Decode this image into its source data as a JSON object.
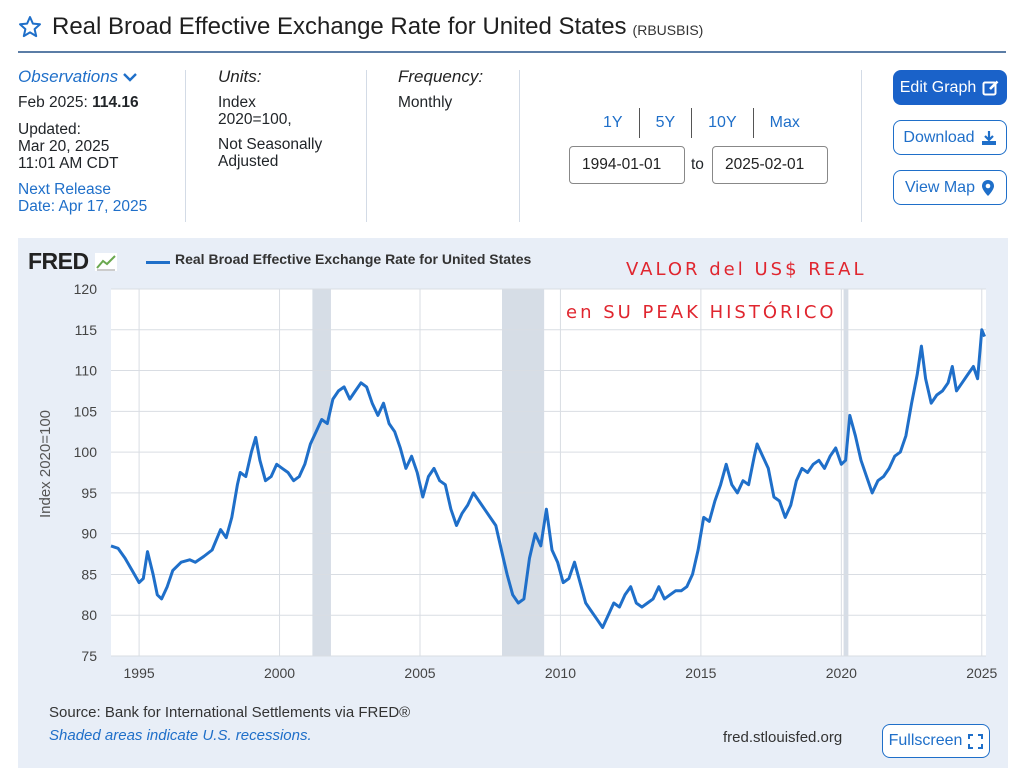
{
  "header": {
    "title": "Real Broad Effective Exchange Rate for United States",
    "series_id": "(RBUSBIS)"
  },
  "meta": {
    "observations_label": "Observations",
    "obs_date": "Feb 2025:",
    "obs_value": "114.16",
    "updated_label": "Updated:",
    "updated_date": "Mar 20, 2025",
    "updated_time": "11:01 AM CDT",
    "next_release_1": "Next Release",
    "next_release_2": "Date: Apr 17, 2025",
    "units_label": "Units:",
    "units_1": "Index",
    "units_2": "2020=100,",
    "units_3": "Not Seasonally",
    "units_4": "Adjusted",
    "frequency_label": "Frequency:",
    "frequency_value": "Monthly"
  },
  "range": {
    "links": [
      "1Y",
      "5Y",
      "10Y",
      "Max"
    ],
    "start": "1994-01-01",
    "to": "to",
    "end": "2025-02-01"
  },
  "buttons": {
    "edit": "Edit Graph",
    "download": "Download",
    "view_map": "View Map",
    "fullscreen": "Fullscreen"
  },
  "footer": {
    "source": "Source: Bank for International Settlements via FRED®",
    "shade_note": "Shaded areas indicate U.S. recessions.",
    "url": "fred.stlouisfed.org"
  },
  "logo": "FRED",
  "annotation": {
    "line1": "VALOR del US$ REAL",
    "line2": "en SU PEAK HISTÓRICO"
  },
  "colors": {
    "series": "#1f6fc9",
    "panel": "#e8eef7",
    "recession": "#d6dde6",
    "annotation": "#e0262f"
  },
  "chart_data": {
    "type": "line",
    "title": "",
    "legend": "Real Broad Effective Exchange Rate for United States",
    "ylabel": "Index 2020=100",
    "xlabel": "",
    "ylim": [
      75,
      120
    ],
    "xlim": [
      1994.0,
      2025.15
    ],
    "yticks": [
      75,
      80,
      85,
      90,
      95,
      100,
      105,
      110,
      115,
      120
    ],
    "xticks": [
      1995,
      2000,
      2005,
      2010,
      2015,
      2020,
      2025
    ],
    "grid": true,
    "recessions": [
      [
        2001.17,
        2001.83
      ],
      [
        2007.92,
        2009.42
      ],
      [
        2020.08,
        2020.25
      ]
    ],
    "series": [
      {
        "name": "Real Broad Effective Exchange Rate for United States",
        "points": [
          [
            1994.0,
            88.5
          ],
          [
            1994.25,
            88.2
          ],
          [
            1994.5,
            87.0
          ],
          [
            1994.75,
            85.5
          ],
          [
            1995.0,
            84.0
          ],
          [
            1995.15,
            84.5
          ],
          [
            1995.3,
            87.8
          ],
          [
            1995.5,
            85.0
          ],
          [
            1995.65,
            82.5
          ],
          [
            1995.8,
            82.0
          ],
          [
            1996.0,
            83.5
          ],
          [
            1996.2,
            85.5
          ],
          [
            1996.5,
            86.5
          ],
          [
            1996.8,
            86.8
          ],
          [
            1997.0,
            86.5
          ],
          [
            1997.3,
            87.2
          ],
          [
            1997.6,
            88.0
          ],
          [
            1997.9,
            90.5
          ],
          [
            1998.1,
            89.5
          ],
          [
            1998.3,
            92.0
          ],
          [
            1998.5,
            96.0
          ],
          [
            1998.6,
            97.5
          ],
          [
            1998.8,
            97.0
          ],
          [
            1999.0,
            100.0
          ],
          [
            1999.15,
            101.8
          ],
          [
            1999.3,
            99.0
          ],
          [
            1999.5,
            96.5
          ],
          [
            1999.7,
            97.0
          ],
          [
            1999.9,
            98.5
          ],
          [
            2000.1,
            98.0
          ],
          [
            2000.3,
            97.5
          ],
          [
            2000.5,
            96.5
          ],
          [
            2000.7,
            97.0
          ],
          [
            2000.9,
            98.5
          ],
          [
            2001.1,
            101.0
          ],
          [
            2001.3,
            102.5
          ],
          [
            2001.5,
            104.0
          ],
          [
            2001.7,
            103.5
          ],
          [
            2001.9,
            106.5
          ],
          [
            2002.1,
            107.5
          ],
          [
            2002.3,
            108.0
          ],
          [
            2002.5,
            106.5
          ],
          [
            2002.7,
            107.5
          ],
          [
            2002.9,
            108.5
          ],
          [
            2003.1,
            108.0
          ],
          [
            2003.3,
            106.0
          ],
          [
            2003.5,
            104.5
          ],
          [
            2003.7,
            106.0
          ],
          [
            2003.9,
            103.5
          ],
          [
            2004.1,
            102.5
          ],
          [
            2004.3,
            100.5
          ],
          [
            2004.5,
            98.0
          ],
          [
            2004.7,
            99.5
          ],
          [
            2004.9,
            97.5
          ],
          [
            2005.1,
            94.5
          ],
          [
            2005.3,
            97.0
          ],
          [
            2005.5,
            98.0
          ],
          [
            2005.7,
            96.5
          ],
          [
            2005.9,
            96.0
          ],
          [
            2006.1,
            93.0
          ],
          [
            2006.3,
            91.0
          ],
          [
            2006.5,
            92.5
          ],
          [
            2006.7,
            93.5
          ],
          [
            2006.9,
            95.0
          ],
          [
            2007.1,
            94.0
          ],
          [
            2007.3,
            93.0
          ],
          [
            2007.5,
            92.0
          ],
          [
            2007.7,
            91.0
          ],
          [
            2007.9,
            88.0
          ],
          [
            2008.1,
            85.0
          ],
          [
            2008.3,
            82.5
          ],
          [
            2008.5,
            81.5
          ],
          [
            2008.7,
            82.0
          ],
          [
            2008.9,
            87.0
          ],
          [
            2009.1,
            90.0
          ],
          [
            2009.3,
            88.5
          ],
          [
            2009.5,
            93.0
          ],
          [
            2009.7,
            88.0
          ],
          [
            2009.9,
            86.5
          ],
          [
            2010.1,
            84.0
          ],
          [
            2010.3,
            84.5
          ],
          [
            2010.5,
            86.5
          ],
          [
            2010.7,
            84.0
          ],
          [
            2010.9,
            81.5
          ],
          [
            2011.1,
            80.5
          ],
          [
            2011.3,
            79.5
          ],
          [
            2011.5,
            78.5
          ],
          [
            2011.7,
            80.0
          ],
          [
            2011.9,
            81.5
          ],
          [
            2012.1,
            81.0
          ],
          [
            2012.3,
            82.5
          ],
          [
            2012.5,
            83.5
          ],
          [
            2012.7,
            81.5
          ],
          [
            2012.9,
            81.0
          ],
          [
            2013.1,
            81.5
          ],
          [
            2013.3,
            82.0
          ],
          [
            2013.5,
            83.5
          ],
          [
            2013.7,
            82.0
          ],
          [
            2013.9,
            82.5
          ],
          [
            2014.1,
            83.0
          ],
          [
            2014.3,
            83.0
          ],
          [
            2014.5,
            83.5
          ],
          [
            2014.7,
            85.0
          ],
          [
            2014.9,
            88.0
          ],
          [
            2015.1,
            92.0
          ],
          [
            2015.3,
            91.5
          ],
          [
            2015.5,
            94.0
          ],
          [
            2015.7,
            96.0
          ],
          [
            2015.9,
            98.5
          ],
          [
            2016.1,
            96.0
          ],
          [
            2016.3,
            95.0
          ],
          [
            2016.5,
            96.5
          ],
          [
            2016.7,
            96.0
          ],
          [
            2016.9,
            99.5
          ],
          [
            2017.0,
            101.0
          ],
          [
            2017.2,
            99.5
          ],
          [
            2017.4,
            98.0
          ],
          [
            2017.6,
            94.5
          ],
          [
            2017.8,
            94.0
          ],
          [
            2018.0,
            92.0
          ],
          [
            2018.2,
            93.5
          ],
          [
            2018.4,
            96.5
          ],
          [
            2018.6,
            98.0
          ],
          [
            2018.8,
            97.5
          ],
          [
            2019.0,
            98.5
          ],
          [
            2019.2,
            99.0
          ],
          [
            2019.4,
            98.0
          ],
          [
            2019.6,
            99.5
          ],
          [
            2019.8,
            100.5
          ],
          [
            2020.0,
            98.5
          ],
          [
            2020.15,
            99.0
          ],
          [
            2020.3,
            104.5
          ],
          [
            2020.5,
            102.0
          ],
          [
            2020.7,
            99.0
          ],
          [
            2020.9,
            97.0
          ],
          [
            2021.1,
            95.0
          ],
          [
            2021.3,
            96.5
          ],
          [
            2021.5,
            97.0
          ],
          [
            2021.7,
            98.0
          ],
          [
            2021.9,
            99.5
          ],
          [
            2022.1,
            100.0
          ],
          [
            2022.3,
            102.0
          ],
          [
            2022.5,
            106.0
          ],
          [
            2022.7,
            109.5
          ],
          [
            2022.85,
            113.0
          ],
          [
            2023.0,
            109.0
          ],
          [
            2023.2,
            106.0
          ],
          [
            2023.4,
            107.0
          ],
          [
            2023.6,
            107.5
          ],
          [
            2023.8,
            108.5
          ],
          [
            2023.95,
            110.5
          ],
          [
            2024.1,
            107.5
          ],
          [
            2024.3,
            108.5
          ],
          [
            2024.5,
            109.5
          ],
          [
            2024.7,
            110.5
          ],
          [
            2024.85,
            109.0
          ],
          [
            2025.0,
            115.0
          ],
          [
            2025.1,
            114.16
          ]
        ]
      }
    ]
  }
}
